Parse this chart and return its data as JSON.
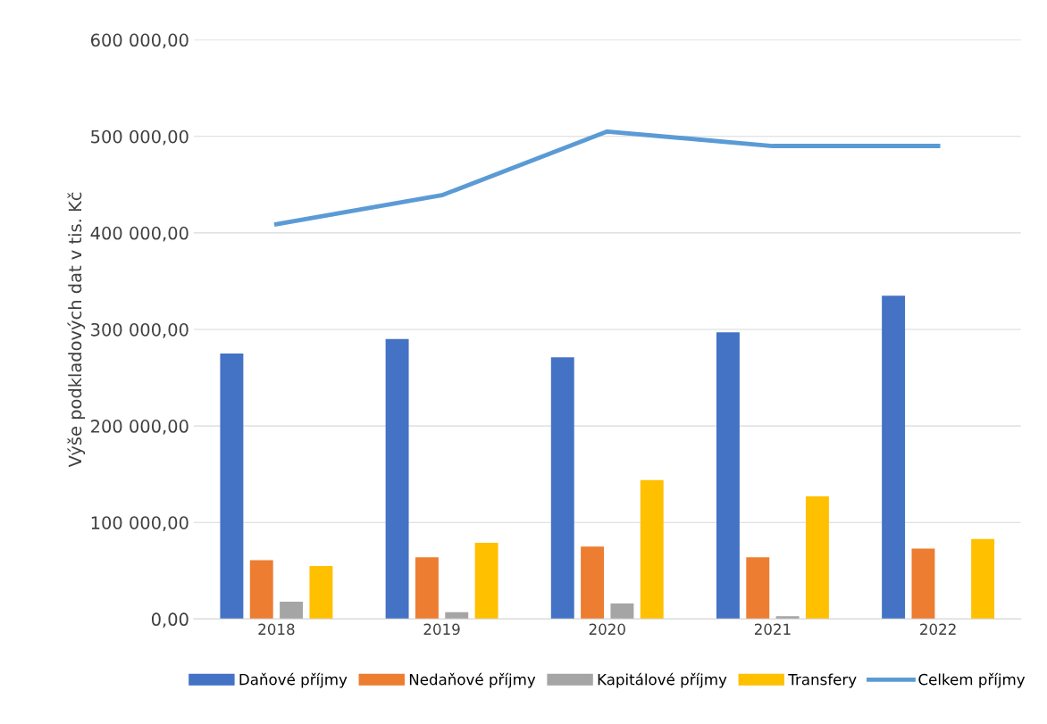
{
  "chart_data": {
    "type": "bar",
    "ylabel": "Výše podkladových dat v tis. Kč",
    "categories": [
      "2018",
      "2019",
      "2020",
      "2021",
      "2022"
    ],
    "series": [
      {
        "name": "Daňové příjmy",
        "color": "#4472c4",
        "values": [
          275000,
          290000,
          271000,
          297000,
          335000
        ]
      },
      {
        "name": "Nedaňové příjmy",
        "color": "#ed7d31",
        "values": [
          61000,
          64000,
          75000,
          64000,
          73000
        ]
      },
      {
        "name": "Kapitálové příjmy",
        "color": "#a5a5a5",
        "values": [
          18000,
          7000,
          16000,
          3000,
          null
        ]
      },
      {
        "name": "Transfery",
        "color": "#ffc000",
        "values": [
          55000,
          79000,
          144000,
          127000,
          83000
        ]
      },
      {
        "name": "Celkem příjmy",
        "color": "#5b9bd5",
        "type": "line",
        "values": [
          409000,
          439000,
          505000,
          490000,
          490000
        ]
      }
    ],
    "ylim": [
      0,
      600000
    ],
    "yticks": [
      {
        "value": 0,
        "label": "0,00"
      },
      {
        "value": 100000,
        "label": "100 000,00"
      },
      {
        "value": 200000,
        "label": "200 000,00"
      },
      {
        "value": 300000,
        "label": "300 000,00"
      },
      {
        "value": 400000,
        "label": "400 000,00"
      },
      {
        "value": 500000,
        "label": "500 000,00"
      },
      {
        "value": 600000,
        "label": "600 000,00"
      }
    ],
    "grid": "y",
    "legend": "bottom",
    "marker": "none"
  }
}
